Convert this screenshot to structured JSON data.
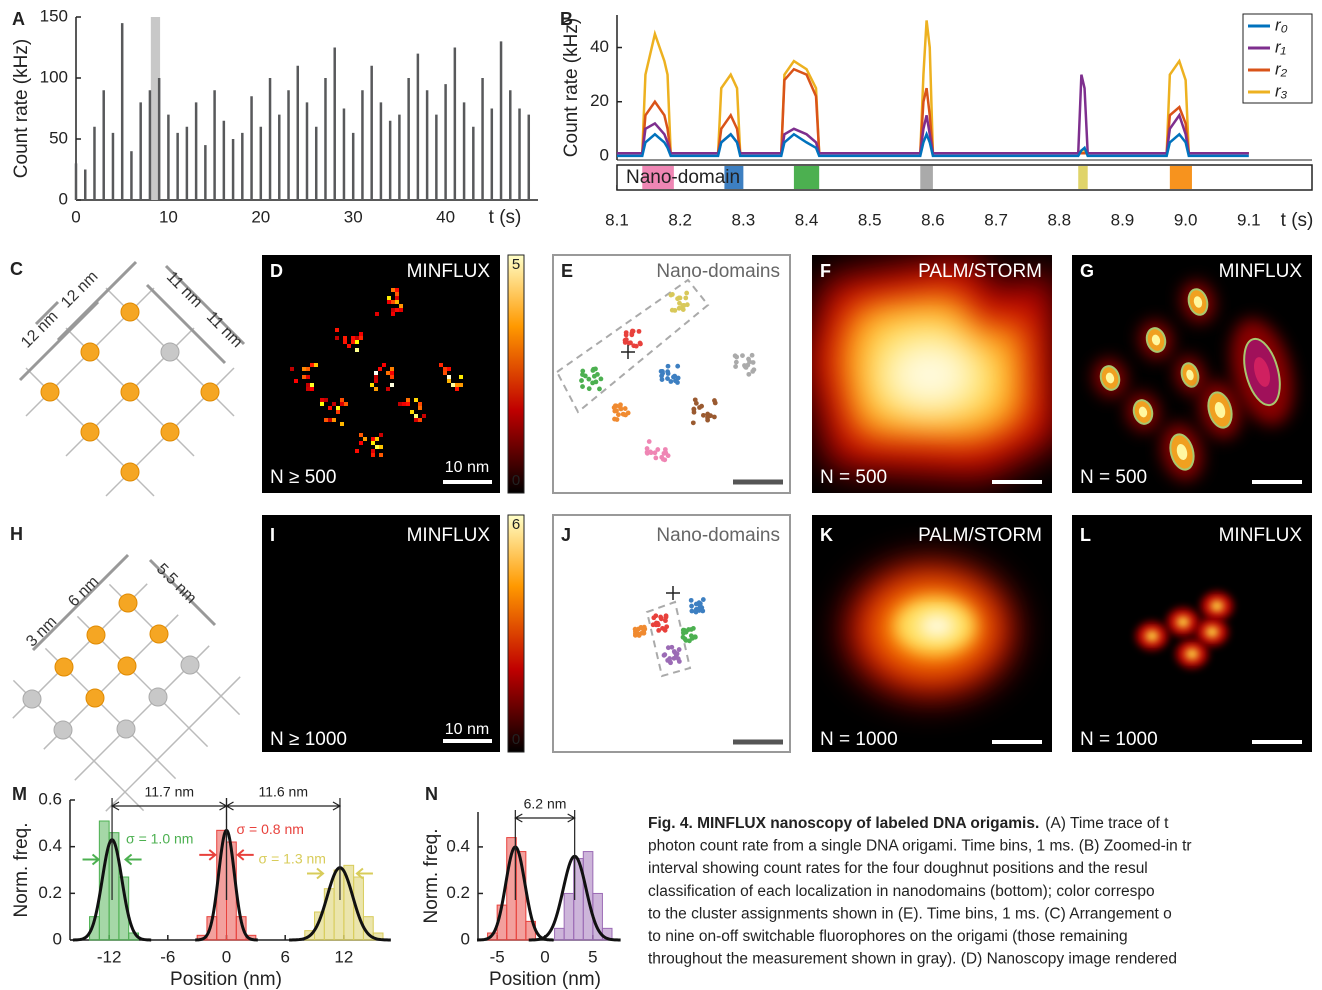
{
  "chart_data": [
    {
      "type": "bar",
      "label": "A",
      "y_label": "Count rate (kHz)",
      "x_label": "t (s)",
      "color": "#58595b",
      "highlight": [
        8.1,
        9.1
      ],
      "x": [
        0,
        1,
        2,
        3,
        4,
        5,
        6,
        7,
        8,
        9,
        10,
        11,
        12,
        13,
        14,
        15,
        16,
        17,
        18,
        19,
        20,
        21,
        22,
        23,
        24,
        25,
        26,
        27,
        28,
        29,
        30,
        31,
        32,
        33,
        34,
        35,
        36,
        37,
        38,
        39,
        40,
        41,
        42,
        43,
        44,
        45,
        46,
        47,
        48,
        49
      ],
      "values": [
        30,
        25,
        60,
        90,
        55,
        145,
        40,
        80,
        90,
        100,
        70,
        55,
        60,
        80,
        45,
        90,
        65,
        50,
        55,
        85,
        60,
        100,
        70,
        90,
        110,
        80,
        60,
        100,
        125,
        75,
        55,
        90,
        110,
        80,
        65,
        70,
        100,
        120,
        90,
        70,
        95,
        125,
        80,
        60,
        100,
        75,
        130,
        90,
        75,
        70
      ],
      "xlim": [
        0,
        50
      ],
      "ylim": [
        0,
        150
      ],
      "xticks": [
        0,
        10,
        20,
        30,
        40
      ],
      "yticks": [
        0,
        50,
        100,
        150
      ]
    },
    {
      "type": "line",
      "label": "B",
      "y_label": "Count rate (kHz)",
      "x_label": "t (s)",
      "legend": "top-right",
      "band_label": "Nano-domain",
      "x": [
        8.1,
        8.14,
        8.145,
        8.16,
        8.175,
        8.18,
        8.185,
        8.26,
        8.265,
        8.28,
        8.29,
        8.295,
        8.36,
        8.365,
        8.38,
        8.4,
        8.415,
        8.42,
        8.58,
        8.585,
        8.59,
        8.595,
        8.6,
        8.83,
        8.835,
        8.84,
        8.845,
        8.97,
        8.975,
        8.99,
        9.0,
        9.005,
        9.1
      ],
      "series": [
        {
          "name": "r₀",
          "color": "#0072bd",
          "values": [
            0,
            0,
            5,
            8,
            5,
            3,
            0,
            0,
            5,
            8,
            5,
            0,
            0,
            5,
            8,
            5,
            3,
            0,
            0,
            5,
            8,
            5,
            0,
            0,
            2,
            3,
            0,
            0,
            5,
            8,
            5,
            0,
            0
          ]
        },
        {
          "name": "r₁",
          "color": "#7e2f8e",
          "values": [
            1,
            1,
            10,
            12,
            8,
            5,
            1,
            1,
            5,
            8,
            5,
            1,
            1,
            8,
            10,
            8,
            5,
            1,
            1,
            10,
            15,
            8,
            1,
            1,
            30,
            25,
            1,
            1,
            10,
            15,
            8,
            1,
            1
          ]
        },
        {
          "name": "r₂",
          "color": "#d95319",
          "values": [
            1,
            1,
            15,
            20,
            15,
            10,
            1,
            1,
            10,
            15,
            10,
            1,
            1,
            28,
            32,
            30,
            22,
            1,
            1,
            20,
            25,
            15,
            1,
            1,
            1,
            1,
            1,
            1,
            15,
            18,
            12,
            1,
            1
          ]
        },
        {
          "name": "r₃",
          "color": "#edb120",
          "values": [
            1,
            1,
            30,
            45,
            35,
            30,
            1,
            1,
            25,
            30,
            25,
            1,
            1,
            30,
            35,
            32,
            25,
            1,
            1,
            30,
            50,
            40,
            1,
            1,
            2,
            2,
            1,
            1,
            30,
            35,
            28,
            1,
            1
          ]
        }
      ],
      "domains": [
        {
          "start": 8.14,
          "end": 8.19,
          "color": "#ef86b4"
        },
        {
          "start": 8.27,
          "end": 8.3,
          "color": "#3d7fc1"
        },
        {
          "start": 8.38,
          "end": 8.42,
          "color": "#4cb050"
        },
        {
          "start": 8.58,
          "end": 8.6,
          "color": "#aaaaaa"
        },
        {
          "start": 8.83,
          "end": 8.845,
          "color": "#e0d46a"
        },
        {
          "start": 8.975,
          "end": 9.01,
          "color": "#f7931e"
        }
      ],
      "xlim": [
        8.1,
        9.2
      ],
      "ylim": [
        -1.5,
        52
      ],
      "xticks": [
        8.1,
        8.2,
        8.3,
        8.4,
        8.5,
        8.6,
        8.7,
        8.8,
        8.9,
        9.0,
        9.1
      ],
      "yticks": [
        0,
        20,
        40
      ]
    },
    {
      "type": "histogram",
      "label": "M",
      "y_label": "Norm. freq.",
      "x_label": "Position (nm)",
      "series": [
        {
          "color": "#4cb050",
          "bins": [
            -14,
            -13,
            -12,
            -11,
            -10,
            -9
          ],
          "values": [
            0.1,
            0.51,
            0.46,
            0.27,
            0.03
          ],
          "fit": {
            "mean": -11.7,
            "sigma": 1.0,
            "peak": 0.43
          },
          "sigma_label": "σ = 1.0 nm"
        },
        {
          "color": "#e8413c",
          "bins": [
            -3,
            -2,
            -1,
            0,
            1,
            2,
            3
          ],
          "values": [
            0.02,
            0.1,
            0.47,
            0.42,
            0.1,
            0.02
          ],
          "fit": {
            "mean": 0,
            "sigma": 0.8,
            "peak": 0.47
          },
          "sigma_label": "σ = 0.8 nm"
        },
        {
          "color": "#d8cc5a",
          "bins": [
            8,
            9,
            10,
            11,
            12,
            13,
            14,
            15,
            16
          ],
          "values": [
            0.04,
            0.12,
            0.22,
            0.3,
            0.32,
            0.27,
            0.1,
            0.03
          ],
          "fit": {
            "mean": 11.6,
            "sigma": 1.3,
            "peak": 0.31
          },
          "sigma_label": "σ = 1.3 nm"
        }
      ],
      "distances": [
        {
          "label": "11.7 nm",
          "from": -11.7,
          "to": 0
        },
        {
          "label": "11.6 nm",
          "from": 0,
          "to": 11.6
        }
      ],
      "xlim": [
        -16,
        16
      ],
      "ylim": [
        0,
        0.6
      ],
      "xticks": [
        -12,
        -6,
        0,
        6,
        12
      ],
      "yticks": [
        0,
        0.2,
        0.4,
        0.6
      ]
    },
    {
      "type": "histogram",
      "label": "N",
      "y_label": "Norm. freq.",
      "x_label": "Position (nm)",
      "series": [
        {
          "color": "#e8413c",
          "bins": [
            -6,
            -5,
            -4,
            -3,
            -2,
            -1
          ],
          "values": [
            0.03,
            0.15,
            0.44,
            0.38,
            0.08
          ],
          "fit": {
            "mean": -3.1,
            "sigma": 1.0,
            "peak": 0.4
          }
        },
        {
          "color": "#9b6bb5",
          "bins": [
            1,
            2,
            3,
            4,
            5,
            6,
            7
          ],
          "values": [
            0.05,
            0.2,
            0.35,
            0.38,
            0.2,
            0.05
          ],
          "fit": {
            "mean": 3.1,
            "sigma": 1.2,
            "peak": 0.36
          }
        }
      ],
      "distances": [
        {
          "label": "6.2 nm",
          "from": -3.1,
          "to": 3.1
        }
      ],
      "xlim": [
        -7,
        7
      ],
      "ylim": [
        0,
        0.55
      ],
      "xticks": [
        -5,
        0,
        5
      ],
      "yticks": [
        0,
        0.2,
        0.4
      ]
    }
  ],
  "panels": [
    {
      "label": "C",
      "dims": [
        "12 nm",
        "12 nm",
        "11 nm",
        "11 nm"
      ]
    },
    {
      "label": "D",
      "title": "MINFLUX",
      "count": "N ≥ 500",
      "scale": "10 nm",
      "colorbar": [
        0,
        5
      ]
    },
    {
      "label": "E",
      "title": "Nano-domains"
    },
    {
      "label": "F",
      "title": "PALM/STORM",
      "count": "N = 500"
    },
    {
      "label": "G",
      "title": "MINFLUX",
      "count": "N = 500"
    },
    {
      "label": "H",
      "dims": [
        "3 nm",
        "6 nm",
        "5.5 nm"
      ]
    },
    {
      "label": "I",
      "title": "MINFLUX",
      "count": "N ≥ 1000",
      "scale": "10 nm",
      "colorbar": [
        0,
        6
      ]
    },
    {
      "label": "J",
      "title": "Nano-domains"
    },
    {
      "label": "K",
      "title": "PALM/STORM",
      "count": "N = 1000"
    },
    {
      "label": "L",
      "title": "MINFLUX",
      "count": "N = 1000"
    }
  ],
  "caption": {
    "title": "Fig. 4. MINFLUX nanoscopy of labeled DNA origamis.",
    "lines": [
      "(A) Time trace of t",
      "photon count rate from a single DNA origami. Time bins, 1 ms. (B) Zoomed-in tr",
      "interval showing count rates for the four doughnut positions and the resul",
      "classification of each localization in nanodomains (bottom); color correspo",
      "to the cluster assignments shown in (E). Time bins, 1 ms. (C) Arrangement o",
      "to nine on-off switchable fluorophores on the origami (those remaining",
      "throughout the measurement shown in gray). (D) Nanoscopy image rendered"
    ]
  }
}
